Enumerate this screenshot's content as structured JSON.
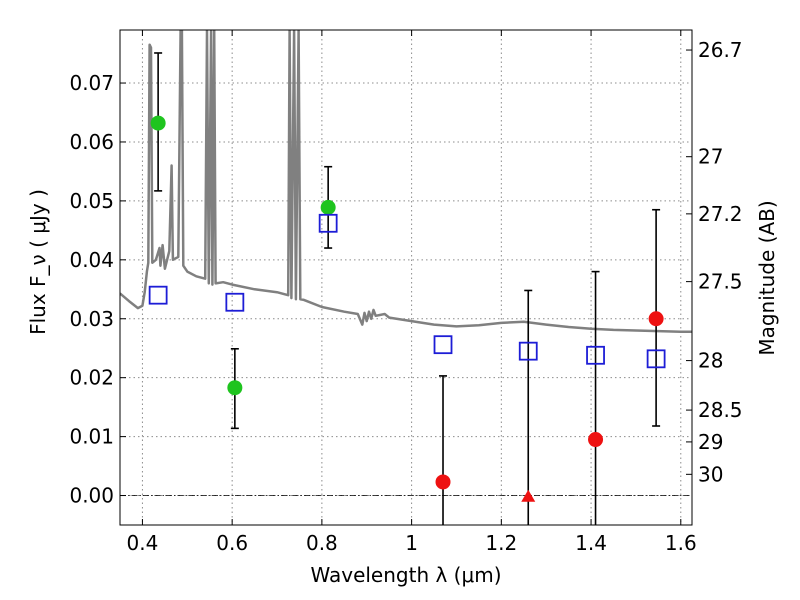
{
  "chart_data": {
    "type": "scatter",
    "xlabel": "Wavelength  λ (μm)",
    "ylabel": "Flux  F_ν  ( μJy )",
    "ylabel_right": "Magnitude (AB)",
    "xlim": [
      0.35,
      1.625
    ],
    "ylim": [
      -0.005,
      0.079
    ],
    "grid": true,
    "x_ticks": [
      0.4,
      0.6,
      0.8,
      1.0,
      1.2,
      1.4,
      1.6
    ],
    "x_tick_labels": [
      "0.4",
      "0.6",
      "0.8",
      "1",
      "1.2",
      "1.4",
      "1.6"
    ],
    "y_ticks": [
      0.0,
      0.01,
      0.02,
      0.03,
      0.04,
      0.05,
      0.06,
      0.07
    ],
    "y_tick_labels": [
      "0.00",
      "0.01",
      "0.02",
      "0.03",
      "0.04",
      "0.05",
      "0.06",
      "0.07"
    ],
    "right_ticks": [
      {
        "label": "26.7",
        "flux": 0.0756
      },
      {
        "label": "27",
        "flux": 0.0575
      },
      {
        "label": "27.2",
        "flux": 0.0478
      },
      {
        "label": "27.5",
        "flux": 0.0363
      },
      {
        "label": "28",
        "flux": 0.0229
      },
      {
        "label": "28.5",
        "flux": 0.0145
      },
      {
        "label": "29",
        "flux": 0.0091
      },
      {
        "label": "30",
        "flux": 0.0036
      }
    ],
    "series": [
      {
        "marker": "circle",
        "color": "#1fc41f",
        "points": [
          {
            "x": 0.435,
            "y": 0.0632,
            "err_low": 0.0517,
            "err_high": 0.0751
          },
          {
            "x": 0.606,
            "y": 0.0183,
            "err_low": 0.0114,
            "err_high": 0.0249
          },
          {
            "x": 0.814,
            "y": 0.0489,
            "err_low": 0.042,
            "err_high": 0.0558
          }
        ]
      },
      {
        "marker": "circle",
        "color": "#ee1111",
        "points": [
          {
            "x": 1.07,
            "y": 0.0023,
            "err_low": -0.005,
            "err_high": 0.0203
          },
          {
            "x": 1.41,
            "y": 0.0095,
            "err_low": -0.005,
            "err_high": 0.038
          },
          {
            "x": 1.545,
            "y": 0.03,
            "err_low": 0.0118,
            "err_high": 0.0485
          }
        ]
      },
      {
        "marker": "triangle",
        "color": "#ee1111",
        "points": [
          {
            "x": 1.26,
            "y": -0.0002,
            "err_low": -0.005,
            "err_high": 0.0348
          }
        ]
      },
      {
        "marker": "open-square",
        "color": "#1d1dd6",
        "points": [
          {
            "x": 0.435,
            "y": 0.034
          },
          {
            "x": 0.606,
            "y": 0.0328
          },
          {
            "x": 0.814,
            "y": 0.0462
          },
          {
            "x": 1.07,
            "y": 0.0256
          },
          {
            "x": 1.26,
            "y": 0.0245
          },
          {
            "x": 1.41,
            "y": 0.0238
          },
          {
            "x": 1.545,
            "y": 0.0232
          }
        ]
      },
      {
        "type": "line",
        "color": "#808080",
        "points": [
          [
            0.35,
            0.0343
          ],
          [
            0.37,
            0.033
          ],
          [
            0.39,
            0.0318
          ],
          [
            0.4,
            0.0322
          ],
          [
            0.405,
            0.0345
          ],
          [
            0.41,
            0.038
          ],
          [
            0.413,
            0.0395
          ],
          [
            0.416,
            0.0765
          ],
          [
            0.419,
            0.076
          ],
          [
            0.422,
            0.0395
          ],
          [
            0.43,
            0.04
          ],
          [
            0.438,
            0.042
          ],
          [
            0.44,
            0.039
          ],
          [
            0.445,
            0.0425
          ],
          [
            0.45,
            0.0385
          ],
          [
            0.46,
            0.0415
          ],
          [
            0.465,
            0.056
          ],
          [
            0.468,
            0.04
          ],
          [
            0.48,
            0.0405
          ],
          [
            0.485,
            0.079
          ],
          [
            0.488,
            0.079
          ],
          [
            0.491,
            0.039
          ],
          [
            0.5,
            0.038
          ],
          [
            0.52,
            0.0372
          ],
          [
            0.54,
            0.0368
          ],
          [
            0.544,
            0.079
          ],
          [
            0.548,
            0.036
          ],
          [
            0.553,
            0.079
          ],
          [
            0.556,
            0.0358
          ],
          [
            0.56,
            0.079
          ],
          [
            0.563,
            0.036
          ],
          [
            0.58,
            0.0362
          ],
          [
            0.6,
            0.0358
          ],
          [
            0.65,
            0.035
          ],
          [
            0.7,
            0.0345
          ],
          [
            0.725,
            0.034
          ],
          [
            0.728,
            0.079
          ],
          [
            0.732,
            0.0335
          ],
          [
            0.738,
            0.079
          ],
          [
            0.742,
            0.0333
          ],
          [
            0.748,
            0.079
          ],
          [
            0.752,
            0.0333
          ],
          [
            0.76,
            0.0332
          ],
          [
            0.8,
            0.032
          ],
          [
            0.85,
            0.0312
          ],
          [
            0.88,
            0.0308
          ],
          [
            0.89,
            0.029
          ],
          [
            0.895,
            0.031
          ],
          [
            0.9,
            0.0296
          ],
          [
            0.905,
            0.0312
          ],
          [
            0.91,
            0.03
          ],
          [
            0.915,
            0.0315
          ],
          [
            0.92,
            0.0305
          ],
          [
            0.94,
            0.0308
          ],
          [
            0.95,
            0.0302
          ],
          [
            1.0,
            0.0296
          ],
          [
            1.05,
            0.029
          ],
          [
            1.1,
            0.0287
          ],
          [
            1.15,
            0.0289
          ],
          [
            1.2,
            0.0293
          ],
          [
            1.25,
            0.0295
          ],
          [
            1.3,
            0.029
          ],
          [
            1.35,
            0.0286
          ],
          [
            1.4,
            0.0283
          ],
          [
            1.45,
            0.0281
          ],
          [
            1.5,
            0.028
          ],
          [
            1.55,
            0.0279
          ],
          [
            1.6,
            0.0278
          ],
          [
            1.625,
            0.0278
          ]
        ]
      }
    ]
  }
}
